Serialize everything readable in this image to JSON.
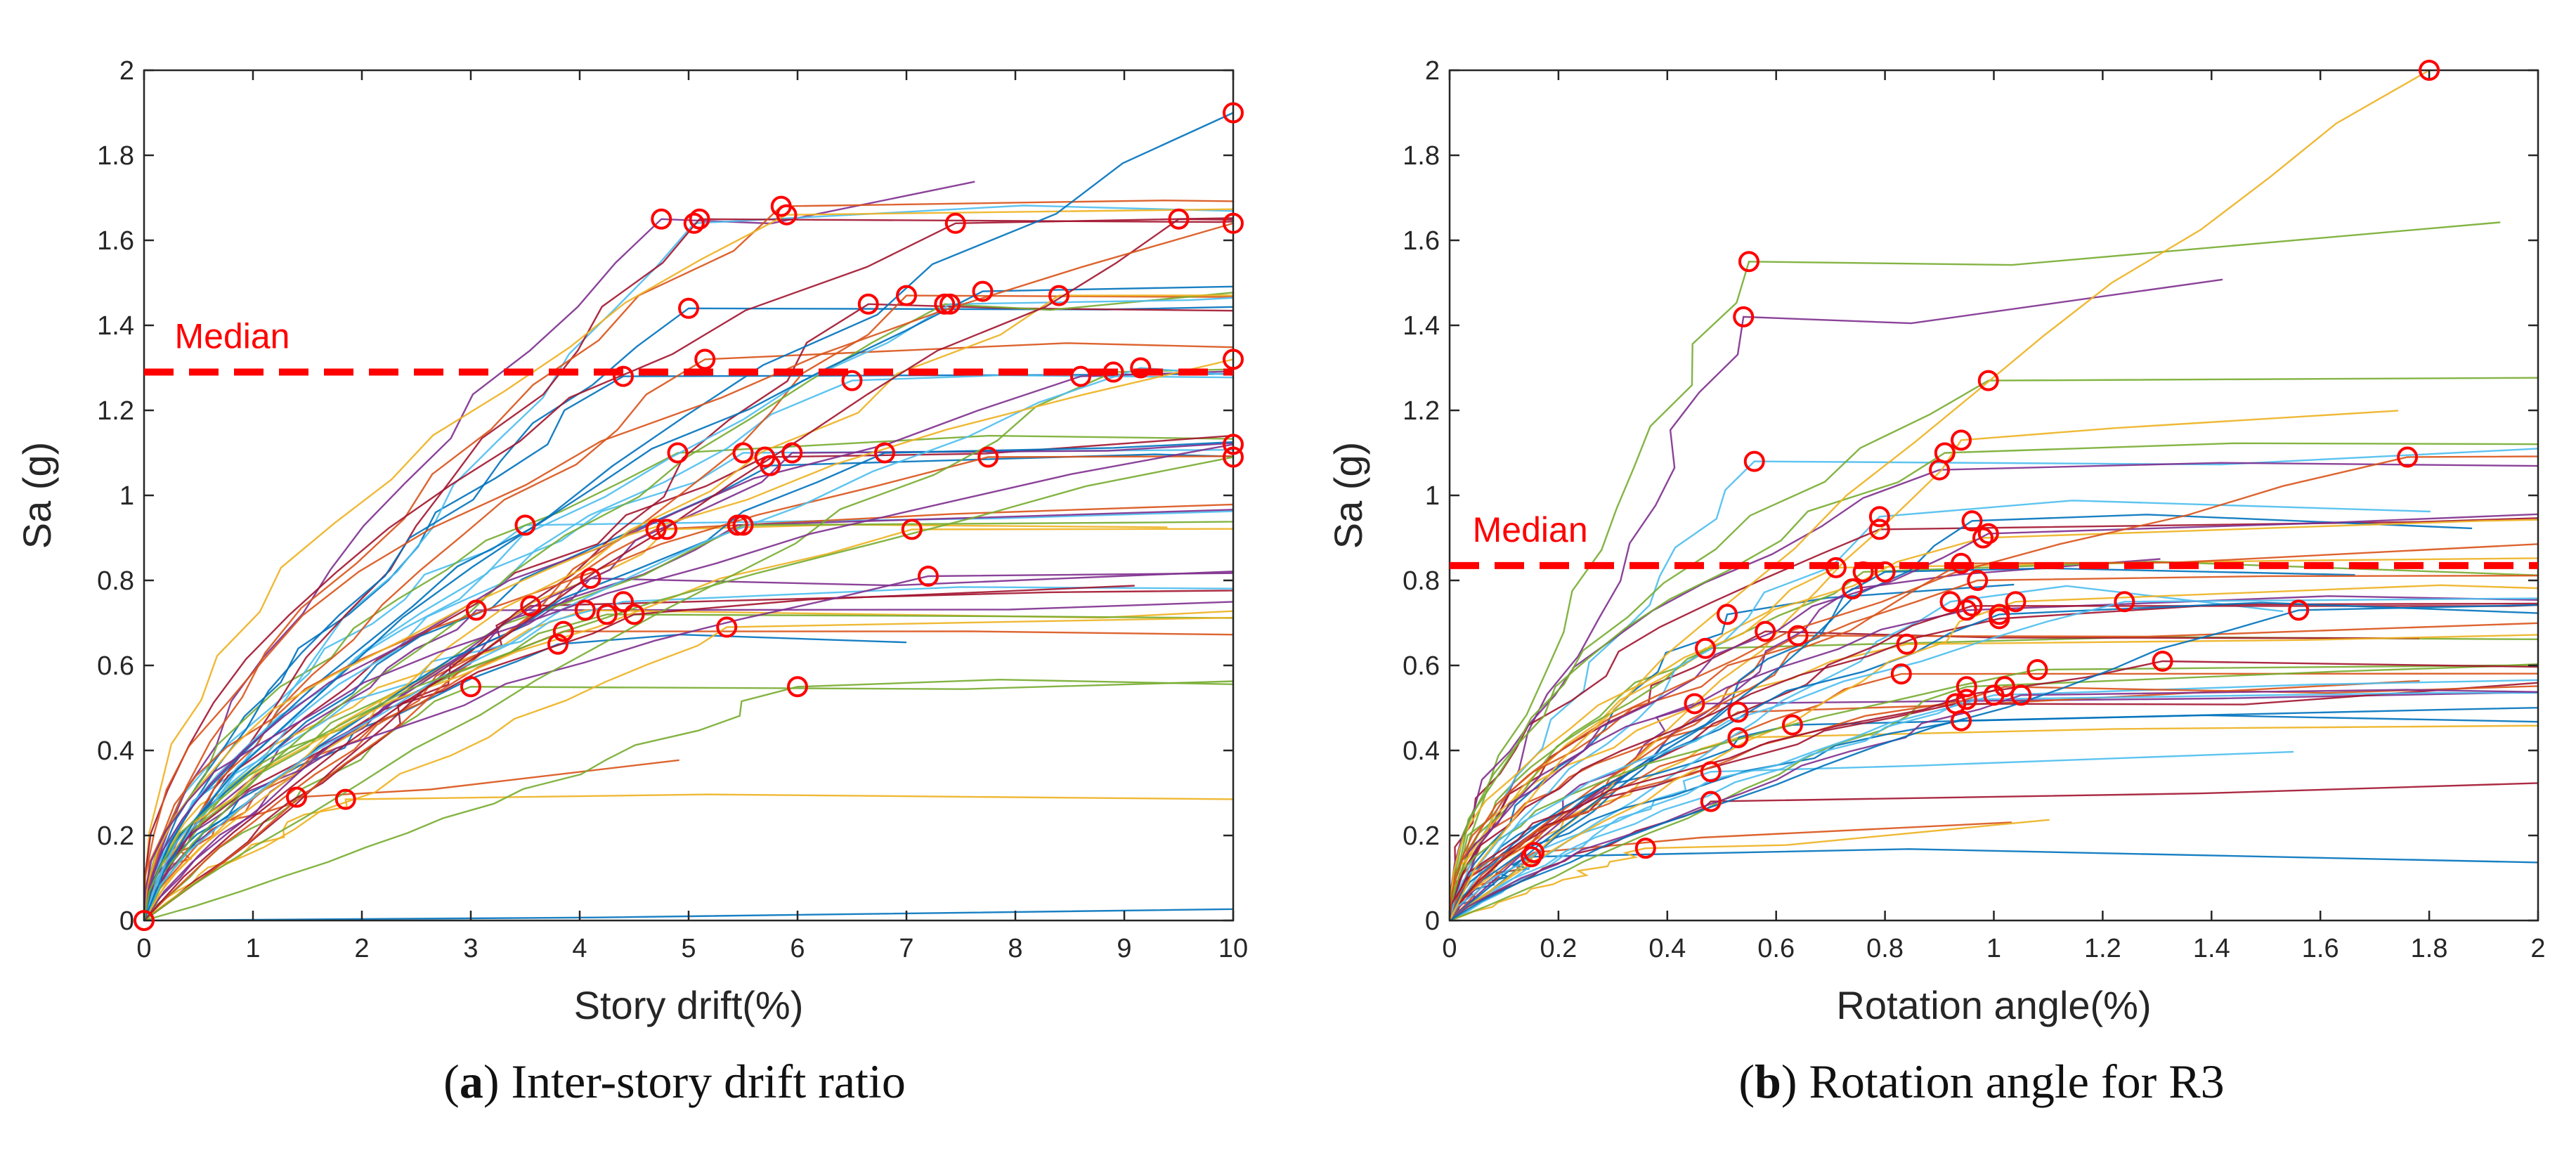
{
  "chart_data": [
    {
      "type": "line",
      "id": "a",
      "xlabel": "Story drift(%)",
      "ylabel": "Sa (g)",
      "xlim": [
        0,
        10
      ],
      "ylim": [
        0,
        2
      ],
      "xticks": [
        0,
        1,
        2,
        3,
        4,
        5,
        6,
        7,
        8,
        9,
        10
      ],
      "yticks": [
        0,
        0.2,
        0.4,
        0.6,
        0.8,
        1,
        1.2,
        1.4,
        1.6,
        1.8,
        2
      ],
      "grid": false,
      "series_description": "Incremental dynamic analysis curves (multi-colored, unlabeled)",
      "median": {
        "label": "Median",
        "y": 1.29,
        "color": "#ff0000"
      },
      "marker_color": "#ff0000",
      "collapse_points": [
        [
          0,
          0
        ],
        [
          1.4,
          0.29
        ],
        [
          1.85,
          0.285
        ],
        [
          3.05,
          0.73
        ],
        [
          3.0,
          0.55
        ],
        [
          3.5,
          0.93
        ],
        [
          3.55,
          0.74
        ],
        [
          3.8,
          0.65
        ],
        [
          3.85,
          0.68
        ],
        [
          4.05,
          0.73
        ],
        [
          4.1,
          0.805
        ],
        [
          4.25,
          0.72
        ],
        [
          4.4,
          0.75
        ],
        [
          4.5,
          0.72
        ],
        [
          4.4,
          1.28
        ],
        [
          4.7,
          0.92
        ],
        [
          4.8,
          0.92
        ],
        [
          4.75,
          1.65
        ],
        [
          4.9,
          1.1
        ],
        [
          5.05,
          1.64
        ],
        [
          5.1,
          1.65
        ],
        [
          5.0,
          1.44
        ],
        [
          5.15,
          1.32
        ],
        [
          5.35,
          0.69
        ],
        [
          5.45,
          0.93
        ],
        [
          5.5,
          0.93
        ],
        [
          5.5,
          1.1
        ],
        [
          5.7,
          1.09
        ],
        [
          5.75,
          1.07
        ],
        [
          5.85,
          1.68
        ],
        [
          5.9,
          1.66
        ],
        [
          5.95,
          1.1
        ],
        [
          6.0,
          0.55
        ],
        [
          6.5,
          1.27
        ],
        [
          6.65,
          1.45
        ],
        [
          6.8,
          1.1
        ],
        [
          7.0,
          1.47
        ],
        [
          7.05,
          0.92
        ],
        [
          7.2,
          0.81
        ],
        [
          7.35,
          1.45
        ],
        [
          7.4,
          1.45
        ],
        [
          7.45,
          1.64
        ],
        [
          7.7,
          1.48
        ],
        [
          7.75,
          1.09
        ],
        [
          8.4,
          1.47
        ],
        [
          8.6,
          1.28
        ],
        [
          8.9,
          1.29
        ],
        [
          9.15,
          1.3
        ],
        [
          9.5,
          1.65
        ],
        [
          10.0,
          1.9
        ],
        [
          10.0,
          1.64
        ],
        [
          10.0,
          1.32
        ],
        [
          10.0,
          1.12
        ],
        [
          10.0,
          1.09
        ]
      ]
    },
    {
      "type": "line",
      "id": "b",
      "xlabel": "Rotation angle(%)",
      "ylabel": "Sa (g)",
      "xlim": [
        0,
        2
      ],
      "ylim": [
        0,
        2
      ],
      "xticks": [
        0,
        0.2,
        0.4,
        0.6,
        0.8,
        1,
        1.2,
        1.4,
        1.6,
        1.8,
        2
      ],
      "yticks": [
        0,
        0.2,
        0.4,
        0.6,
        0.8,
        1,
        1.2,
        1.4,
        1.6,
        1.8,
        2
      ],
      "grid": false,
      "series_description": "Incremental dynamic analysis curves (multi-colored, unlabeled)",
      "median": {
        "label": "Median",
        "y": 0.835,
        "color": "#ff0000"
      },
      "marker_color": "#ff0000",
      "collapse_points": [
        [
          0.15,
          0.15
        ],
        [
          0.155,
          0.16
        ],
        [
          0.36,
          0.17
        ],
        [
          0.45,
          0.51
        ],
        [
          0.47,
          0.64
        ],
        [
          0.48,
          0.35
        ],
        [
          0.48,
          0.28
        ],
        [
          0.51,
          0.72
        ],
        [
          0.53,
          0.49
        ],
        [
          0.53,
          0.43
        ],
        [
          0.54,
          1.42
        ],
        [
          0.55,
          1.55
        ],
        [
          0.56,
          1.08
        ],
        [
          0.58,
          0.68
        ],
        [
          0.63,
          0.46
        ],
        [
          0.64,
          0.67
        ],
        [
          0.71,
          0.83
        ],
        [
          0.74,
          0.78
        ],
        [
          0.76,
          0.82
        ],
        [
          0.79,
          0.95
        ],
        [
          0.79,
          0.92
        ],
        [
          0.8,
          0.82
        ],
        [
          0.83,
          0.58
        ],
        [
          0.84,
          0.65
        ],
        [
          0.9,
          1.06
        ],
        [
          0.91,
          1.1
        ],
        [
          0.92,
          0.75
        ],
        [
          0.93,
          0.51
        ],
        [
          0.94,
          0.47
        ],
        [
          0.94,
          0.84
        ],
        [
          0.94,
          1.13
        ],
        [
          0.95,
          0.73
        ],
        [
          0.95,
          0.55
        ],
        [
          0.95,
          0.52
        ],
        [
          0.96,
          0.74
        ],
        [
          0.96,
          0.94
        ],
        [
          0.97,
          0.8
        ],
        [
          0.98,
          0.9
        ],
        [
          0.99,
          0.91
        ],
        [
          0.99,
          1.27
        ],
        [
          1.0,
          0.53
        ],
        [
          1.01,
          0.71
        ],
        [
          1.01,
          0.72
        ],
        [
          1.02,
          0.55
        ],
        [
          1.04,
          0.75
        ],
        [
          1.05,
          0.53
        ],
        [
          1.08,
          0.59
        ],
        [
          1.24,
          0.75
        ],
        [
          1.31,
          0.61
        ],
        [
          1.56,
          0.73
        ],
        [
          1.76,
          1.09
        ],
        [
          1.8,
          2.0
        ]
      ]
    }
  ],
  "captions": {
    "a": {
      "letter": "a",
      "open": "(",
      "close": ")",
      "text": " Inter-story drift ratio"
    },
    "b": {
      "letter": "b",
      "open": "(",
      "close": ")",
      "text": " Rotation angle for R3"
    }
  },
  "palette": [
    "#0072BD",
    "#D95319",
    "#EDB120",
    "#7E2F8E",
    "#77AC30",
    "#4DBEEE",
    "#A2142F"
  ]
}
